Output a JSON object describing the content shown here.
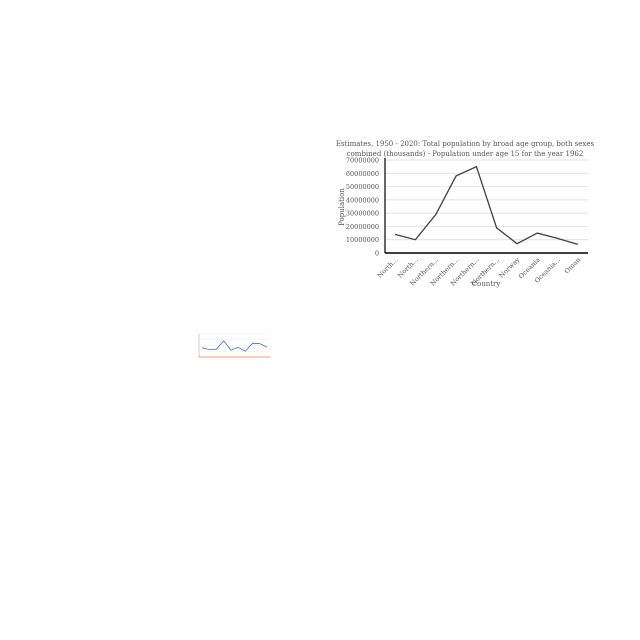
{
  "chart_data": [
    {
      "type": "line",
      "title_line1": "Estimates, 1950 - 2020: Total population by broad age group, both sexes",
      "title_line2": "combined (thousands) - Population under age 15 for the year 1962",
      "xlabel": "Country",
      "ylabel": "Population",
      "categories": [
        "North...",
        "North...",
        "Northern...",
        "Northern...",
        "Northern...",
        "Northern...",
        "Norway",
        "Oceania",
        "Oceania...",
        "Oman"
      ],
      "values": [
        14000000,
        10000000,
        29000000,
        58000000,
        65000000,
        19000000,
        7000000,
        15000000,
        11000000,
        6500000
      ],
      "yticks": [
        "0",
        "10000000",
        "20000000",
        "30000000",
        "40000000",
        "50000000",
        "60000000",
        "70000000"
      ],
      "ylim": [
        0,
        70000000
      ],
      "grid": true,
      "colors": {
        "line": "#404040",
        "grid": "#d9d9d9",
        "axis": "#000000"
      }
    },
    {
      "type": "line",
      "values": [
        4,
        3.2,
        3.4,
        7,
        3,
        4.2,
        2.5,
        6,
        5.8,
        4.3
      ],
      "ylim": [
        0,
        10
      ],
      "grid": true,
      "colors": {
        "line": "#4472c4",
        "axis": "#ed7d31",
        "grid": "#e6e6e6"
      }
    }
  ]
}
